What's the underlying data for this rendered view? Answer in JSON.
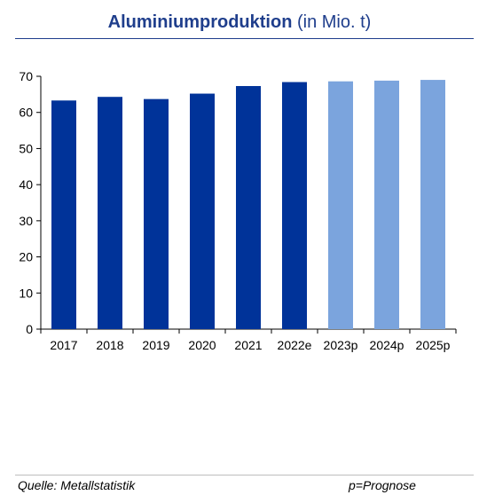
{
  "header": {
    "title": "Aluminiumproduktion",
    "unit": "(in Mio. t)"
  },
  "footer": {
    "source": "Quelle: Metallstatistik",
    "note": "p=Prognose"
  },
  "colors": {
    "actual": "#003399",
    "forecast": "#7ba4dd",
    "title": "#1f3e8c"
  },
  "chart_data": {
    "type": "bar",
    "categories": [
      "2017",
      "2018",
      "2019",
      "2020",
      "2021",
      "2022e",
      "2023p",
      "2024p",
      "2025p"
    ],
    "values": [
      63.3,
      64.3,
      63.7,
      65.2,
      67.3,
      68.4,
      68.6,
      68.8,
      69.0
    ],
    "forecast": [
      false,
      false,
      false,
      false,
      false,
      false,
      true,
      true,
      true
    ],
    "ylim": [
      0,
      70
    ],
    "yticks": [
      0,
      10,
      20,
      30,
      40,
      50,
      60,
      70
    ],
    "grid": false,
    "legend": "none"
  }
}
